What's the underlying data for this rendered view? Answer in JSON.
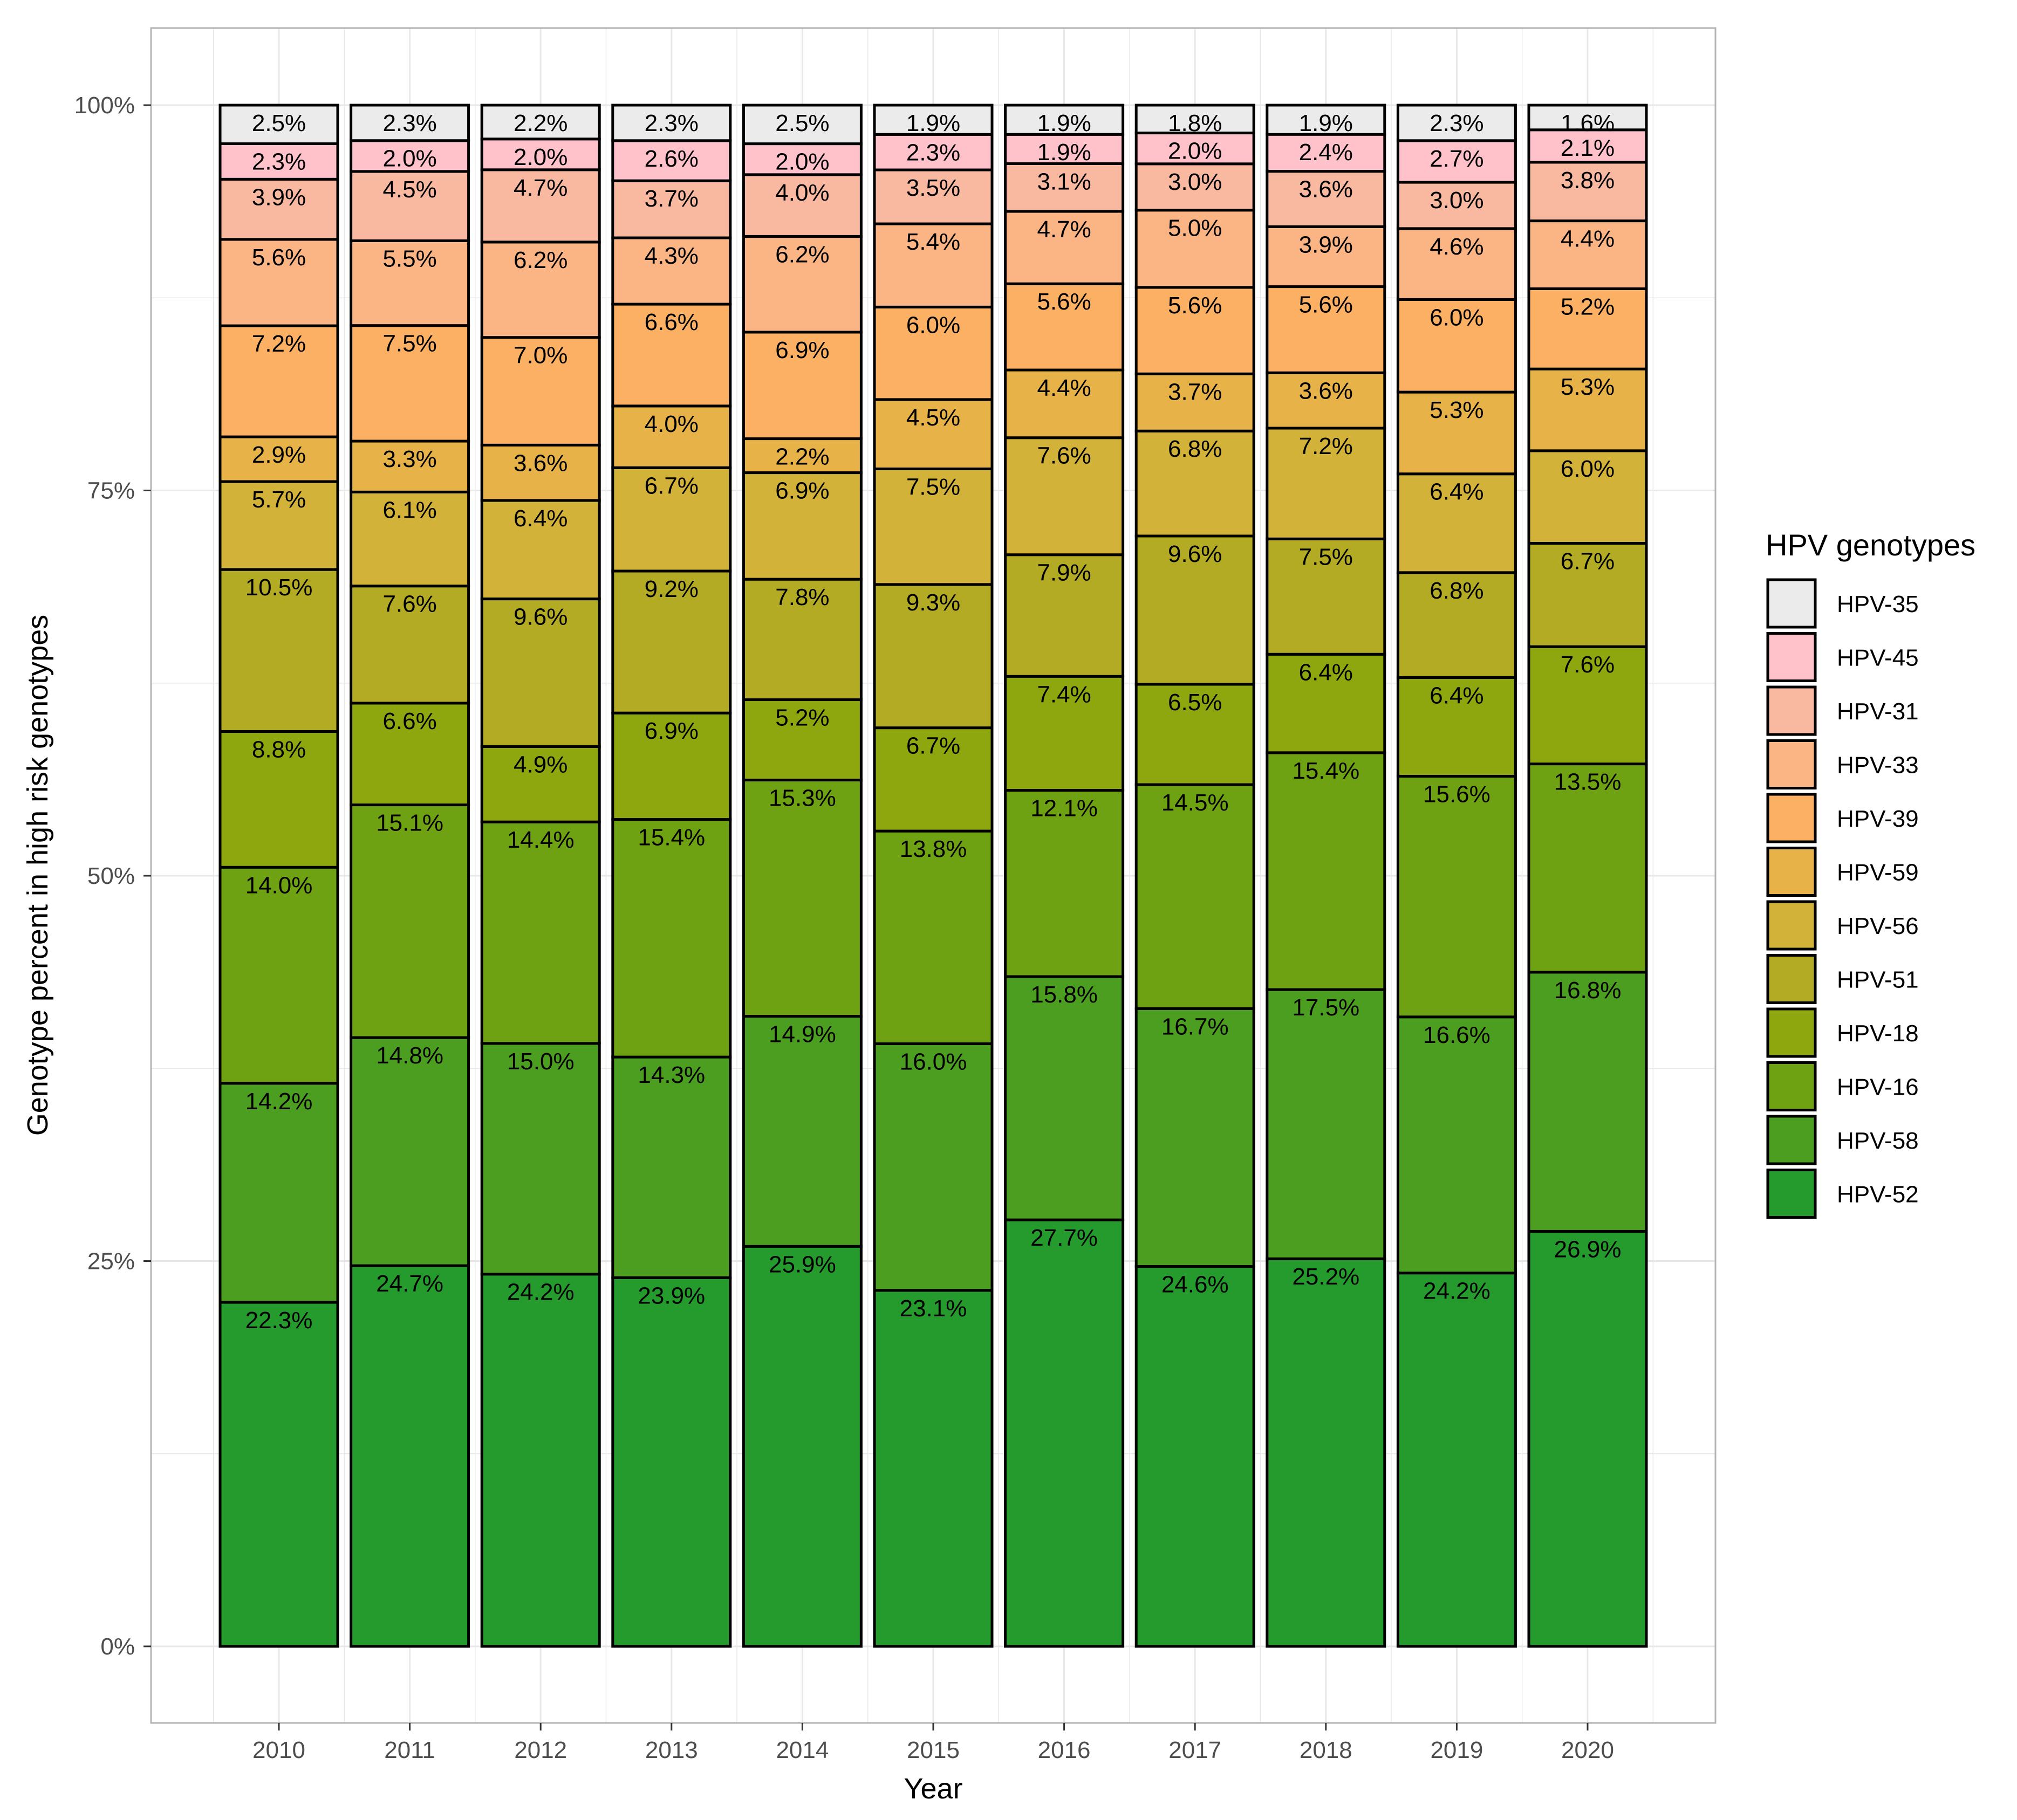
{
  "chart_data": {
    "type": "bar",
    "stacked": true,
    "percent_stacked": true,
    "xlabel": "Year",
    "ylabel": "Genotype percent in high risk genotypes",
    "y_tick_labels": [
      "0%",
      "25%",
      "50%",
      "75%",
      "100%"
    ],
    "ylim": [
      0,
      100
    ],
    "grid": true,
    "legend": {
      "title": "HPV genotypes",
      "placement": "right"
    },
    "categories": [
      "2010",
      "2011",
      "2012",
      "2013",
      "2014",
      "2015",
      "2016",
      "2017",
      "2018",
      "2019",
      "2020"
    ],
    "series": [
      {
        "name": "HPV-52",
        "color": "#259a2d",
        "values": [
          22.3,
          24.7,
          24.2,
          23.9,
          25.9,
          23.1,
          27.7,
          24.6,
          25.2,
          24.2,
          26.9
        ]
      },
      {
        "name": "HPV-58",
        "color": "#4b9e1f",
        "values": [
          14.2,
          14.8,
          15.0,
          14.3,
          14.9,
          16.0,
          15.8,
          16.7,
          17.5,
          16.6,
          16.8
        ]
      },
      {
        "name": "HPV-16",
        "color": "#6fa212",
        "values": [
          14.0,
          15.1,
          14.4,
          15.4,
          15.3,
          13.8,
          12.1,
          14.5,
          15.4,
          15.6,
          13.5
        ]
      },
      {
        "name": "HPV-18",
        "color": "#8fa70f",
        "values": [
          8.8,
          6.6,
          4.9,
          6.9,
          5.2,
          6.7,
          7.4,
          6.5,
          6.4,
          6.4,
          7.6
        ]
      },
      {
        "name": "HPV-51",
        "color": "#b3ab23",
        "values": [
          10.5,
          7.6,
          9.6,
          9.2,
          7.8,
          9.3,
          7.9,
          9.6,
          7.5,
          6.8,
          6.7
        ]
      },
      {
        "name": "HPV-56",
        "color": "#d2b238",
        "values": [
          5.7,
          6.1,
          6.4,
          6.7,
          6.9,
          7.5,
          7.6,
          6.8,
          7.2,
          6.4,
          6.0
        ]
      },
      {
        "name": "HPV-59",
        "color": "#e7b349",
        "values": [
          2.9,
          3.3,
          3.6,
          4.0,
          2.2,
          4.5,
          4.4,
          3.7,
          3.6,
          5.3,
          5.3
        ]
      },
      {
        "name": "HPV-39",
        "color": "#fbb064",
        "values": [
          7.2,
          7.5,
          7.0,
          6.6,
          6.9,
          6.0,
          5.6,
          5.6,
          5.6,
          6.0,
          5.2
        ]
      },
      {
        "name": "HPV-33",
        "color": "#fbb584",
        "values": [
          5.6,
          5.5,
          6.2,
          4.3,
          6.2,
          5.4,
          4.7,
          5.0,
          3.9,
          4.6,
          4.4
        ]
      },
      {
        "name": "HPV-31",
        "color": "#f9b9a1",
        "values": [
          3.9,
          4.5,
          4.7,
          3.7,
          4.0,
          3.5,
          3.1,
          3.0,
          3.6,
          3.0,
          3.8
        ]
      },
      {
        "name": "HPV-45",
        "color": "#ffc2cb",
        "values": [
          2.3,
          2.0,
          2.0,
          2.6,
          2.0,
          2.3,
          1.9,
          2.0,
          2.4,
          2.7,
          2.1
        ]
      },
      {
        "name": "HPV-35",
        "color": "#ebebeb",
        "values": [
          2.5,
          2.3,
          2.2,
          2.3,
          2.5,
          1.9,
          1.9,
          1.8,
          1.9,
          2.3,
          1.6
        ]
      }
    ]
  }
}
